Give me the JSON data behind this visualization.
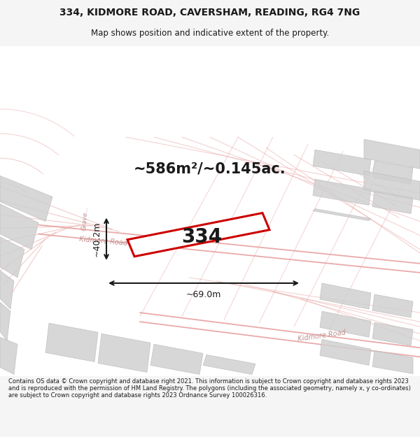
{
  "title_line1": "334, KIDMORE ROAD, CAVERSHAM, READING, RG4 7NG",
  "title_line2": "Map shows position and indicative extent of the property.",
  "area_text": "~586m²/~0.145ac.",
  "label_334": "334",
  "dim_width": "~69.0m",
  "dim_height": "~40.2m",
  "road_label_upper": "Kidmore Road",
  "road_label_lower": "Kidmore Road",
  "grave_label": "Grave...",
  "footer_text": "Contains OS data © Crown copyright and database right 2021. This information is subject to Crown copyright and database rights 2023 and is reproduced with the permission of HM Land Registry. The polygons (including the associated geometry, namely x, y co-ordinates) are subject to Crown copyright and database rights 2023 Ordnance Survey 100026316.",
  "bg_color": "#f5f5f5",
  "map_bg": "#f8f8f8",
  "road_color": "#e8a0a0",
  "block_fill": "#d0d0d0",
  "block_edge": "#bbbbbb",
  "property_color": "#cc0000",
  "dim_color": "#1a1a1a",
  "text_color": "#1a1a1a",
  "road_text_color": "#c09090"
}
